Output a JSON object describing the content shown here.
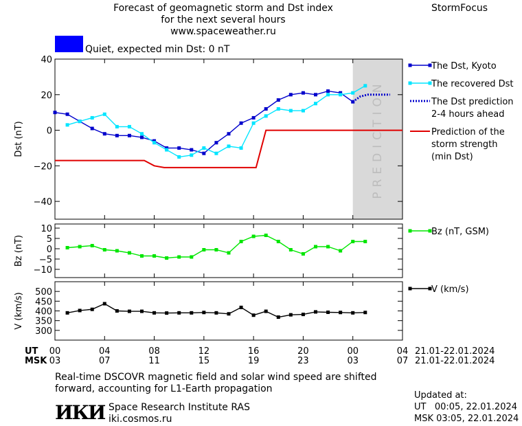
{
  "header": {
    "title_line1": "Forecast of geomagnetic storm and Dst index",
    "title_line2": "for the next several hours",
    "url": "www.spaceweather.ru",
    "brand": "StormFocus",
    "status_text": "Quiet, expected min Dst: 0 nT",
    "status_color": "#0000ff"
  },
  "footer": {
    "note_line1": "Real-time DSCOVR magnetic field and solar wind speed are shifted",
    "note_line2": "forward, accounting for L1-Earth propagation",
    "institute_logo": "ИКИ",
    "institute_name": "Space Research Institute RAS",
    "institute_site": "iki.cosmos.ru",
    "updated_label": "Updated at:",
    "updated_ut": "UT   00:05, 22.01.2024",
    "updated_msk": "MSK 03:05, 22.01.2024"
  },
  "chart_data": {
    "type": "line",
    "x_unit": "hours",
    "x_range": [
      0,
      28
    ],
    "time_axis": {
      "ut_label": "UT",
      "msk_label": "MSK",
      "ticks": [
        0,
        4,
        8,
        12,
        16,
        20,
        24,
        28
      ],
      "ut_tick_labels": [
        "00",
        "04",
        "08",
        "12",
        "16",
        "20",
        "00",
        "04"
      ],
      "msk_tick_labels": [
        "03",
        "07",
        "11",
        "15",
        "19",
        "23",
        "03",
        "07"
      ],
      "ut_dates": "21.01-22.01.2024",
      "msk_dates": "21.01-22.01.2024"
    },
    "prediction_zone": {
      "x_start": 24,
      "x_end": 28,
      "label": "PREDICTION",
      "color": "#d9d9d9"
    },
    "panels": [
      {
        "id": "dst",
        "ylabel": "Dst (nT)",
        "ylim": [
          -50,
          40
        ],
        "yticks": [
          40,
          20,
          0,
          -20,
          -40
        ],
        "series": [
          {
            "name": "The Dst, Kyoto",
            "color": "#0000cc",
            "style": "line-square",
            "x": [
              0,
              1,
              2,
              3,
              4,
              5,
              6,
              7,
              8,
              9,
              10,
              11,
              12,
              13,
              14,
              15,
              16,
              17,
              18,
              19,
              20,
              21,
              22,
              23,
              24
            ],
            "y": [
              10,
              9,
              5,
              1,
              -2,
              -3,
              -3,
              -4,
              -6,
              -10,
              -10,
              -11,
              -13,
              -7,
              -2,
              4,
              7,
              12,
              17,
              20,
              21,
              20,
              22,
              21,
              16
            ]
          },
          {
            "name": "The recovered Dst",
            "color": "#00e5ff",
            "style": "line-square",
            "x": [
              1,
              2,
              3,
              4,
              5,
              6,
              7,
              8,
              9,
              10,
              11,
              12,
              13,
              14,
              15,
              16,
              17,
              18,
              19,
              20,
              21,
              22,
              23,
              24,
              25
            ],
            "y": [
              3,
              5,
              7,
              9,
              2,
              2,
              -2,
              -7,
              -11,
              -15,
              -14,
              -10,
              -13,
              -9,
              -10,
              4,
              8,
              12,
              11,
              11,
              15,
              20,
              20,
              21,
              25
            ]
          },
          {
            "name": "The Dst prediction 2-4 hours ahead",
            "label_lines": [
              "The Dst prediction",
              "2-4 hours ahead"
            ],
            "color": "#0000cc",
            "style": "dotted",
            "x": [
              24,
              24.6,
              25.2,
              25.8,
              26.4,
              27
            ],
            "y": [
              16,
              19,
              20,
              20,
              20,
              20
            ]
          },
          {
            "name": "Prediction of the storm strength (min Dst)",
            "label_lines": [
              "Prediction of the",
              "storm strength",
              "(min Dst)"
            ],
            "color": "#e00000",
            "style": "line",
            "x": [
              0,
              7.2,
              8,
              8.8,
              16.2,
              17,
              28
            ],
            "y": [
              -17,
              -17,
              -20,
              -21,
              -21,
              0,
              0
            ]
          }
        ]
      },
      {
        "id": "bz",
        "ylabel": "Bz (nT)",
        "ylim": [
          -14,
          12
        ],
        "yticks": [
          10,
          5,
          0,
          -5,
          -10
        ],
        "series": [
          {
            "name": "Bz (nT, GSM)",
            "color": "#00e600",
            "style": "line-square",
            "x": [
              1,
              2,
              3,
              4,
              5,
              6,
              7,
              8,
              9,
              10,
              11,
              12,
              13,
              14,
              15,
              16,
              17,
              18,
              19,
              20,
              21,
              22,
              23,
              24,
              25
            ],
            "y": [
              0.5,
              1,
              1.5,
              -0.5,
              -1,
              -2,
              -3.5,
              -3.5,
              -4.5,
              -4,
              -4,
              -0.5,
              -0.5,
              -2,
              3.5,
              6,
              6.5,
              3.5,
              -0.5,
              -2.5,
              1,
              1,
              -1,
              3.5,
              3.5
            ]
          }
        ]
      },
      {
        "id": "v",
        "ylabel": "V (km/s)",
        "ylim": [
          250,
          550
        ],
        "yticks": [
          500,
          450,
          400,
          350,
          300
        ],
        "series": [
          {
            "name": "V (km/s)",
            "color": "#000000",
            "style": "line-square",
            "x": [
              1,
              2,
              3,
              4,
              5,
              6,
              7,
              8,
              9,
              10,
              11,
              12,
              13,
              14,
              15,
              16,
              17,
              18,
              19,
              20,
              21,
              22,
              23,
              24,
              25
            ],
            "y": [
              390,
              402,
              408,
              437,
              400,
              398,
              398,
              390,
              389,
              390,
              390,
              392,
              390,
              385,
              418,
              378,
              398,
              368,
              380,
              382,
              395,
              393,
              392,
              390,
              392
            ]
          }
        ]
      }
    ]
  }
}
